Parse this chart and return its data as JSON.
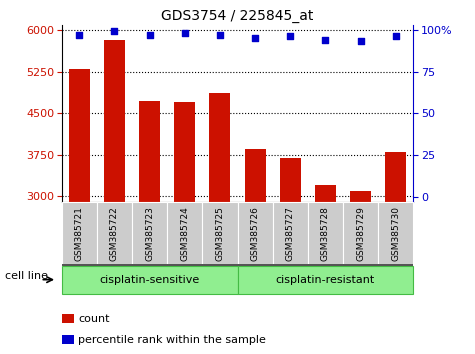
{
  "title": "GDS3754 / 225845_at",
  "samples": [
    "GSM385721",
    "GSM385722",
    "GSM385723",
    "GSM385724",
    "GSM385725",
    "GSM385726",
    "GSM385727",
    "GSM385728",
    "GSM385729",
    "GSM385730"
  ],
  "counts": [
    5300,
    5820,
    4720,
    4700,
    4860,
    3850,
    3700,
    3210,
    3100,
    3800
  ],
  "percentile": [
    97,
    99,
    97,
    98,
    97,
    95,
    96,
    94,
    93,
    96
  ],
  "bar_color": "#cc1100",
  "dot_color": "#0000cc",
  "ylim_left": [
    2900,
    6100
  ],
  "ylim_right": [
    -3,
    103
  ],
  "yticks_left": [
    3000,
    3750,
    4500,
    5250,
    6000
  ],
  "yticks_right": [
    0,
    25,
    50,
    75,
    100
  ],
  "group1_label": "cisplatin-sensitive",
  "group2_label": "cisplatin-resistant",
  "group1_count": 5,
  "group2_count": 5,
  "cell_line_label": "cell line",
  "legend_count": "count",
  "legend_pct": "percentile rank within the sample",
  "bar_color_red": "#cc1100",
  "dot_color_blue": "#0000cc",
  "gray_bg": "#cccccc",
  "green_bg": "#90ee90",
  "green_border": "#44bb44",
  "ticklabel_left_color": "#cc1100",
  "ticklabel_right_color": "#0000cc"
}
